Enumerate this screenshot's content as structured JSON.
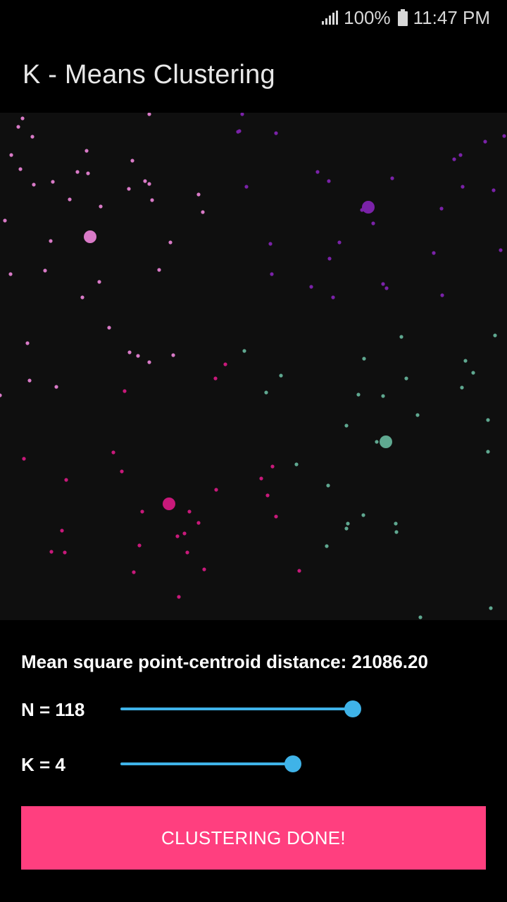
{
  "status_bar": {
    "battery_text": "100%",
    "time": "11:47 PM",
    "icons": [
      "signal-icon",
      "battery-icon"
    ]
  },
  "app": {
    "title": "K - Means Clustering"
  },
  "metrics": {
    "mean_square_text": "Mean square point-centroid distance: 21086.20"
  },
  "sliders": {
    "n": {
      "label": "N = 118",
      "value": 118,
      "fraction": 0.97
    },
    "k": {
      "label": "K = 4",
      "value": 4,
      "fraction": 0.72
    }
  },
  "button": {
    "label": "CLUSTERING DONE!"
  },
  "colors": {
    "cluster_light_pink": "#d97ac7",
    "cluster_purple": "#7a22a8",
    "cluster_teal": "#5fa890",
    "cluster_magenta": "#c8197a",
    "accent_blue": "#3fb3e8",
    "button_pink": "#ff3f7f"
  },
  "chart_data": {
    "type": "scatter",
    "series": [
      {
        "color": "#d97ac7",
        "centroid": [
          128,
          176
        ],
        "points": [
          [
            32,
            8
          ],
          [
            26,
            20
          ],
          [
            46,
            34
          ],
          [
            16,
            60
          ],
          [
            29,
            80
          ],
          [
            48,
            102
          ],
          [
            75,
            98
          ],
          [
            99,
            123
          ],
          [
            110,
            84
          ],
          [
            123,
            54
          ],
          [
            125,
            86
          ],
          [
            143,
            133
          ],
          [
            183,
            108
          ],
          [
            206,
            97
          ],
          [
            212,
            101
          ],
          [
            216,
            124
          ],
          [
            188,
            68
          ],
          [
            212,
            2
          ],
          [
            7,
            153
          ],
          [
            72,
            182
          ],
          [
            64,
            224
          ],
          [
            15,
            229
          ],
          [
            117,
            262
          ],
          [
            141,
            240
          ],
          [
            226,
            223
          ],
          [
            242,
            184
          ],
          [
            282,
            116
          ],
          [
            288,
            141
          ],
          [
            155,
            305
          ],
          [
            184,
            340
          ],
          [
            196,
            345
          ],
          [
            212,
            354
          ],
          [
            246,
            344
          ],
          [
            39,
            327
          ],
          [
            42,
            380
          ],
          [
            80,
            389
          ],
          [
            0,
            401
          ]
        ]
      },
      {
        "color": "#7a22a8",
        "centroid": [
          523,
          134
        ],
        "points": [
          [
            344,
            2
          ],
          [
            340,
            26
          ],
          [
            338,
            27
          ],
          [
            392,
            29
          ],
          [
            451,
            84
          ],
          [
            467,
            97
          ],
          [
            557,
            93
          ],
          [
            645,
            66
          ],
          [
            654,
            60
          ],
          [
            689,
            41
          ],
          [
            716,
            33
          ],
          [
            701,
            110
          ],
          [
            657,
            105
          ],
          [
            627,
            136
          ],
          [
            514,
            138
          ],
          [
            530,
            157
          ],
          [
            350,
            105
          ],
          [
            384,
            186
          ],
          [
            482,
            184
          ],
          [
            468,
            207
          ],
          [
            386,
            229
          ],
          [
            442,
            247
          ],
          [
            473,
            262
          ],
          [
            544,
            243
          ],
          [
            549,
            249
          ],
          [
            616,
            199
          ],
          [
            628,
            259
          ],
          [
            711,
            195
          ]
        ]
      },
      {
        "color": "#5fa890",
        "centroid": [
          548,
          467
        ],
        "points": [
          [
            347,
            338
          ],
          [
            399,
            373
          ],
          [
            378,
            397
          ],
          [
            517,
            349
          ],
          [
            570,
            318
          ],
          [
            577,
            377
          ],
          [
            509,
            400
          ],
          [
            544,
            402
          ],
          [
            492,
            444
          ],
          [
            535,
            467
          ],
          [
            593,
            429
          ],
          [
            656,
            390
          ],
          [
            661,
            352
          ],
          [
            672,
            369
          ],
          [
            703,
            316
          ],
          [
            693,
            436
          ],
          [
            693,
            481
          ],
          [
            421,
            499
          ],
          [
            466,
            529
          ],
          [
            516,
            571
          ],
          [
            494,
            583
          ],
          [
            492,
            590
          ],
          [
            562,
            583
          ],
          [
            563,
            595
          ],
          [
            464,
            615
          ],
          [
            697,
            703
          ],
          [
            597,
            716
          ]
        ]
      },
      {
        "color": "#c8197a",
        "centroid": [
          240,
          555
        ],
        "points": [
          [
            320,
            357
          ],
          [
            306,
            377
          ],
          [
            177,
            395
          ],
          [
            161,
            482
          ],
          [
            173,
            509
          ],
          [
            94,
            521
          ],
          [
            34,
            491
          ],
          [
            387,
            502
          ],
          [
            371,
            519
          ],
          [
            380,
            543
          ],
          [
            392,
            573
          ],
          [
            307,
            535
          ],
          [
            202,
            566
          ],
          [
            269,
            566
          ],
          [
            282,
            582
          ],
          [
            262,
            597
          ],
          [
            252,
            601
          ],
          [
            88,
            593
          ],
          [
            198,
            614
          ],
          [
            266,
            624
          ],
          [
            73,
            623
          ],
          [
            92,
            624
          ],
          [
            290,
            648
          ],
          [
            190,
            652
          ],
          [
            425,
            650
          ],
          [
            254,
            687
          ]
        ]
      }
    ]
  }
}
